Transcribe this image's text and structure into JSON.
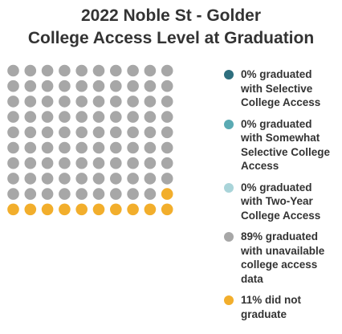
{
  "chart_data": {
    "type": "waffle",
    "title": [
      "2022 Noble St - Golder",
      "College Access Level at Graduation"
    ],
    "total_units": 100,
    "columns": 10,
    "series": [
      {
        "name": "0% graduated with Selective College Access",
        "value": 0,
        "color": "#2e6f7e"
      },
      {
        "name": "0% graduated with Somewhat Selective College Access",
        "value": 0,
        "color": "#5aaab3"
      },
      {
        "name": "0% graduated with Two-Year College Access",
        "value": 0,
        "color": "#a9d4d9"
      },
      {
        "name": "89% graduated with unavailable college access data",
        "value": 89,
        "color": "#a7a7a7"
      },
      {
        "name": "11% did not graduate",
        "value": 11,
        "color": "#f2ae2c"
      }
    ]
  },
  "legend": [
    {
      "lines": [
        "0% graduated",
        "with Selective",
        "College Access"
      ],
      "color": "#2e6f7e"
    },
    {
      "lines": [
        "0% graduated",
        "with Somewhat",
        "Selective College",
        "Access"
      ],
      "color": "#5aaab3"
    },
    {
      "lines": [
        "0% graduated",
        "with Two-Year",
        "College Access"
      ],
      "color": "#a9d4d9"
    },
    {
      "lines": [
        "89% graduated",
        "with unavailable",
        "college access",
        "data"
      ],
      "color": "#a7a7a7"
    },
    {
      "lines": [
        "11% did not",
        "graduate"
      ],
      "color": "#f2ae2c"
    }
  ]
}
